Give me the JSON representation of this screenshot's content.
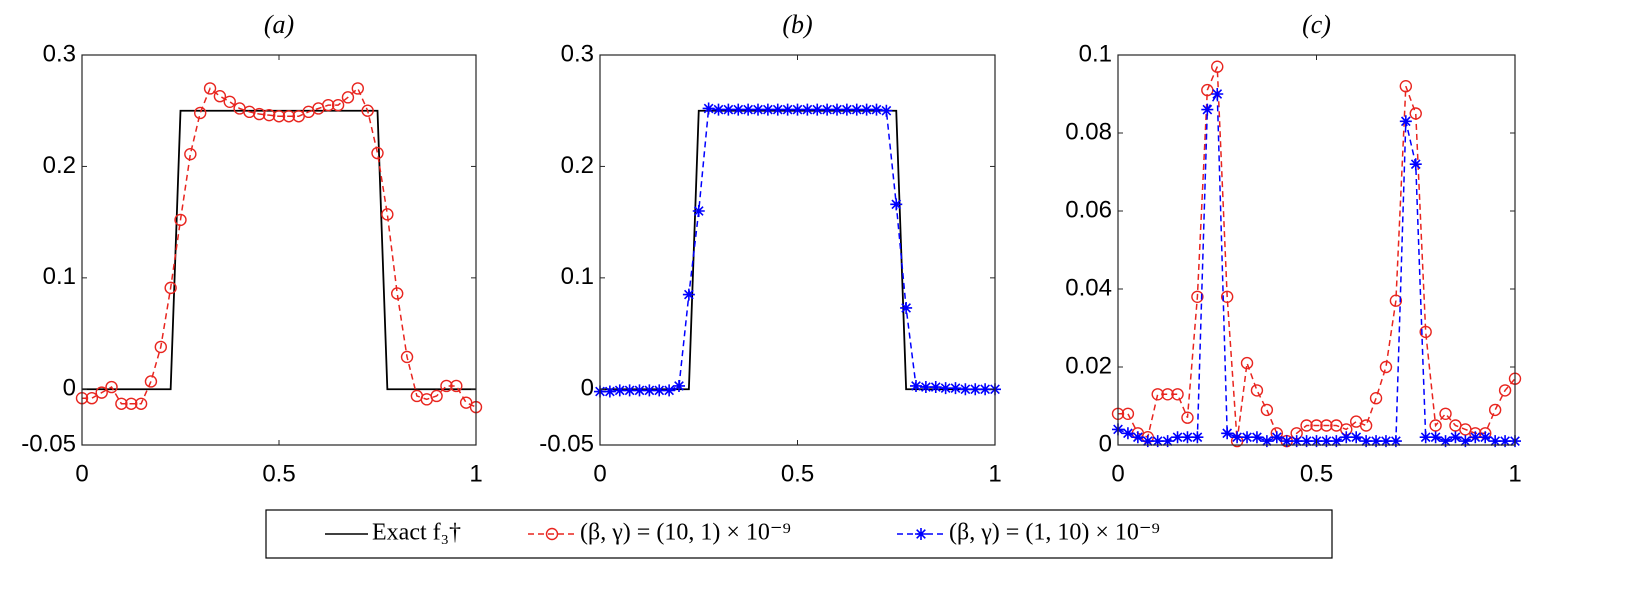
{
  "chart_data": [
    {
      "type": "line",
      "title": "(a)",
      "xlim": [
        0,
        1
      ],
      "xticks": [
        0,
        0.5,
        1
      ],
      "ylim": [
        -0.05,
        0.3
      ],
      "yticks": [
        -0.05,
        0,
        0.1,
        0.2,
        0.3
      ],
      "x": [
        0,
        0.025,
        0.05,
        0.075,
        0.1,
        0.125,
        0.15,
        0.175,
        0.2,
        0.225,
        0.25,
        0.275,
        0.3,
        0.325,
        0.35,
        0.375,
        0.4,
        0.425,
        0.45,
        0.475,
        0.5,
        0.525,
        0.55,
        0.575,
        0.6,
        0.625,
        0.65,
        0.675,
        0.7,
        0.725,
        0.75,
        0.775,
        0.8,
        0.825,
        0.85,
        0.875,
        0.9,
        0.925,
        0.95,
        0.975,
        1
      ],
      "series": [
        {
          "legend": 0,
          "color": "#000000",
          "marker": "none",
          "dashed": false,
          "x": [
            0,
            0.225,
            0.25,
            0.75,
            0.775,
            1
          ],
          "values": [
            0,
            0,
            0.25,
            0.25,
            0,
            0
          ]
        },
        {
          "legend": 1,
          "color": "#e8251f",
          "marker": "circle",
          "dashed": true,
          "values": [
            -0.008,
            -0.008,
            -0.003,
            0.002,
            -0.013,
            -0.013,
            -0.013,
            0.007,
            0.038,
            0.091,
            0.152,
            0.211,
            0.248,
            0.27,
            0.263,
            0.258,
            0.252,
            0.249,
            0.247,
            0.246,
            0.245,
            0.245,
            0.245,
            0.249,
            0.252,
            0.255,
            0.255,
            0.262,
            0.27,
            0.25,
            0.212,
            0.157,
            0.086,
            0.029,
            -0.006,
            -0.009,
            -0.006,
            0.003,
            0.003,
            -0.012,
            -0.016
          ]
        }
      ]
    },
    {
      "type": "line",
      "title": "(b)",
      "xlim": [
        0,
        1
      ],
      "xticks": [
        0,
        0.5,
        1
      ],
      "ylim": [
        -0.05,
        0.3
      ],
      "yticks": [
        -0.05,
        0,
        0.1,
        0.2,
        0.3
      ],
      "x": [
        0,
        0.025,
        0.05,
        0.075,
        0.1,
        0.125,
        0.15,
        0.175,
        0.2,
        0.225,
        0.25,
        0.275,
        0.3,
        0.325,
        0.35,
        0.375,
        0.4,
        0.425,
        0.45,
        0.475,
        0.5,
        0.525,
        0.55,
        0.575,
        0.6,
        0.625,
        0.65,
        0.675,
        0.7,
        0.725,
        0.75,
        0.775,
        0.8,
        0.825,
        0.85,
        0.875,
        0.9,
        0.925,
        0.95,
        0.975,
        1
      ],
      "series": [
        {
          "legend": 0,
          "color": "#000000",
          "marker": "none",
          "dashed": false,
          "x": [
            0,
            0.225,
            0.25,
            0.75,
            0.775,
            1
          ],
          "values": [
            0,
            0,
            0.25,
            0.25,
            0,
            0
          ]
        },
        {
          "legend": 2,
          "color": "#0000ff",
          "marker": "asterisk",
          "dashed": true,
          "values": [
            -0.002,
            -0.002,
            -0.001,
            -0.001,
            -0.001,
            -0.001,
            -0.001,
            -0.001,
            0.003,
            0.085,
            0.16,
            0.252,
            0.251,
            0.251,
            0.251,
            0.251,
            0.251,
            0.251,
            0.251,
            0.251,
            0.251,
            0.251,
            0.251,
            0.251,
            0.251,
            0.251,
            0.251,
            0.251,
            0.251,
            0.25,
            0.166,
            0.073,
            0.003,
            0.002,
            0.002,
            0.001,
            0.001,
            0,
            0,
            0,
            0
          ]
        }
      ]
    },
    {
      "type": "line",
      "title": "(c)",
      "xlim": [
        0,
        1
      ],
      "xticks": [
        0,
        0.5,
        1
      ],
      "ylim": [
        0,
        0.1
      ],
      "yticks": [
        0,
        0.02,
        0.04,
        0.06,
        0.08,
        0.1
      ],
      "x": [
        0,
        0.025,
        0.05,
        0.075,
        0.1,
        0.125,
        0.15,
        0.175,
        0.2,
        0.225,
        0.25,
        0.275,
        0.3,
        0.325,
        0.35,
        0.375,
        0.4,
        0.425,
        0.45,
        0.475,
        0.5,
        0.525,
        0.55,
        0.575,
        0.6,
        0.625,
        0.65,
        0.675,
        0.7,
        0.725,
        0.75,
        0.775,
        0.8,
        0.825,
        0.85,
        0.875,
        0.9,
        0.925,
        0.95,
        0.975,
        1
      ],
      "series": [
        {
          "legend": 1,
          "color": "#e8251f",
          "marker": "circle",
          "dashed": true,
          "values": [
            0.008,
            0.008,
            0.003,
            0.002,
            0.013,
            0.013,
            0.013,
            0.007,
            0.038,
            0.091,
            0.097,
            0.038,
            0.001,
            0.021,
            0.014,
            0.009,
            0.003,
            0.001,
            0.003,
            0.005,
            0.005,
            0.005,
            0.005,
            0.004,
            0.006,
            0.005,
            0.012,
            0.02,
            0.037,
            0.092,
            0.085,
            0.029,
            0.005,
            0.008,
            0.005,
            0.004,
            0.003,
            0.003,
            0.009,
            0.014,
            0.017
          ]
        },
        {
          "legend": 2,
          "color": "#0000ff",
          "marker": "asterisk",
          "dashed": true,
          "values": [
            0.004,
            0.003,
            0.002,
            0.001,
            0.001,
            0.001,
            0.002,
            0.002,
            0.002,
            0.086,
            0.09,
            0.003,
            0.002,
            0.002,
            0.002,
            0.001,
            0.002,
            0.001,
            0.001,
            0.001,
            0.001,
            0.001,
            0.001,
            0.002,
            0.002,
            0.001,
            0.001,
            0.001,
            0.001,
            0.083,
            0.072,
            0.002,
            0.002,
            0.001,
            0.002,
            0.001,
            0.002,
            0.002,
            0.001,
            0.001,
            0.001
          ]
        }
      ]
    }
  ],
  "legend": {
    "items": [
      {
        "name": "Exact f₃†",
        "color": "#000000",
        "marker": "none",
        "dashed": false
      },
      {
        "name": "(β, γ) = (10, 1) × 10⁻⁹",
        "color": "#e8251f",
        "marker": "circle",
        "dashed": true
      },
      {
        "name": "(β, γ) = (1, 10) × 10⁻⁹",
        "color": "#0000ff",
        "marker": "asterisk",
        "dashed": true
      }
    ]
  }
}
